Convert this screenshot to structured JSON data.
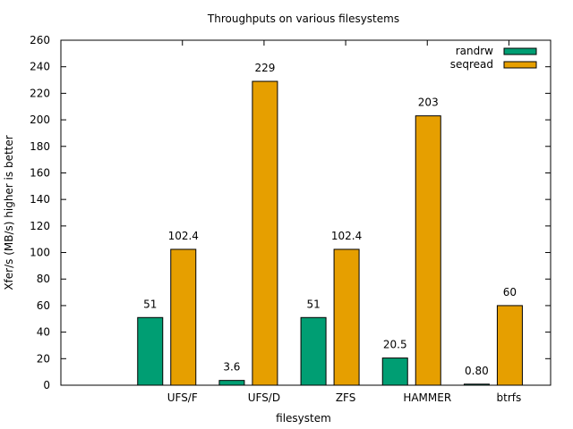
{
  "chart_data": {
    "type": "bar",
    "title": "Throughputs on various filesystems",
    "xlabel": "filesystem",
    "ylabel": "Xfer/s (MB/s) higher is better",
    "categories": [
      "UFS/F",
      "UFS/D",
      "ZFS",
      "HAMMER",
      "btrfs"
    ],
    "ylim": [
      0,
      260
    ],
    "yticks": [
      "0",
      "20",
      "40",
      "60",
      "80",
      "100",
      "120",
      "140",
      "160",
      "180",
      "200",
      "220",
      "240",
      "260"
    ],
    "series": [
      {
        "name": "randrw",
        "color": "#009e73",
        "values": [
          51,
          3.6,
          51,
          20.5,
          0.8
        ],
        "labels": [
          "51",
          "3.6",
          "51",
          "20.5",
          "0.80"
        ]
      },
      {
        "name": "seqread",
        "color": "#e69f00",
        "values": [
          102.4,
          229,
          102.4,
          203,
          60
        ],
        "labels": [
          "102.4",
          "229",
          "102.4",
          "203",
          "60"
        ]
      }
    ],
    "legend_position": "top-right",
    "grid": false
  }
}
